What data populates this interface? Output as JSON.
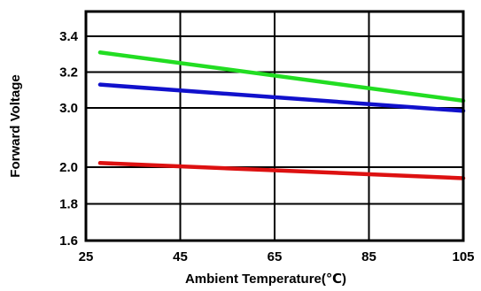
{
  "chart_data": {
    "type": "line",
    "title": "",
    "xlabel": "Ambient Temperature(℃)",
    "ylabel": "Forward Voltage",
    "xlim": [
      25,
      105
    ],
    "x_ticks": [
      "25",
      "45",
      "65",
      "85",
      "105"
    ],
    "x_tick_values": [
      25,
      45,
      65,
      85,
      105
    ],
    "y_ticks": [
      "1.6",
      "1.8",
      "2.0",
      "3.0",
      "3.2",
      "3.4"
    ],
    "y_tick_values": [
      1.6,
      1.8,
      2.0,
      3.0,
      3.2,
      3.4
    ],
    "grid": true,
    "series": [
      {
        "color": "#22dd22",
        "x": [
          28,
          105
        ],
        "y": [
          3.31,
          3.04
        ]
      },
      {
        "color": "#1111cc",
        "x": [
          28,
          105
        ],
        "y": [
          3.13,
          2.95
        ]
      },
      {
        "color": "#dd1111",
        "x": [
          28,
          105
        ],
        "y": [
          2.07,
          1.94
        ]
      }
    ]
  }
}
